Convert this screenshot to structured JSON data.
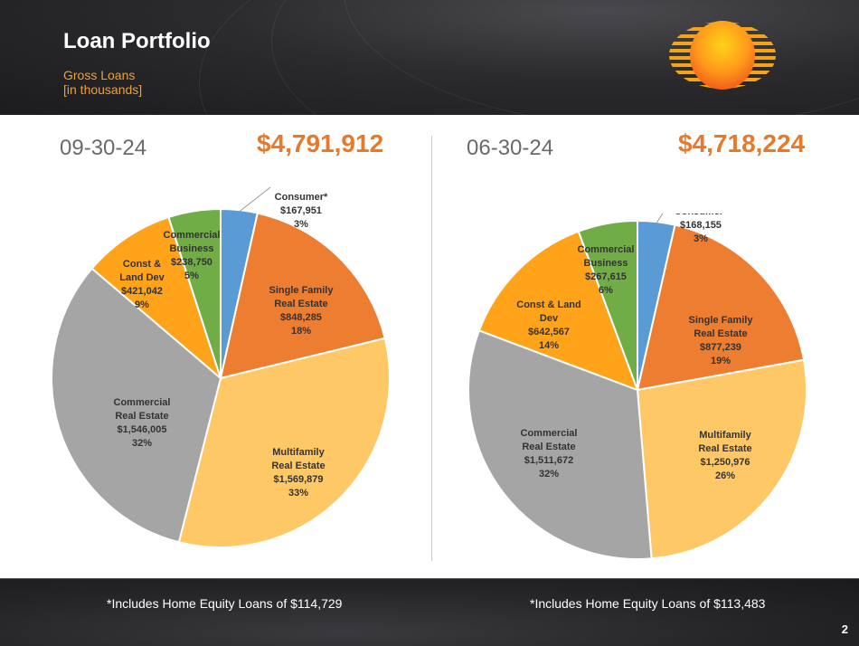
{
  "header": {
    "title": "Loan Portfolio",
    "subtitle_line1": "Gross Loans",
    "subtitle_line2": "[in thousands]"
  },
  "page_number": "2",
  "colors": {
    "accent": "#e8782a",
    "consumer": "#5b9bd5",
    "single_family": "#ed7d31",
    "multifamily": "#ffc866",
    "commercial_real_estate": "#a5a5a5",
    "const_land_dev": "#ffa31a",
    "commercial_business": "#70ad47"
  },
  "chart_data": [
    {
      "type": "pie",
      "date": "09-30-24",
      "total": "$4,791,912",
      "footnote": "*Includes Home Equity Loans of $114,729",
      "slices": [
        {
          "key": "consumer",
          "lines": [
            "Consumer*",
            "$167,951",
            "3%"
          ],
          "value": 167951,
          "color": "#5b9bd5"
        },
        {
          "key": "single_family",
          "lines": [
            "Single Family",
            "Real Estate",
            "$848,285",
            "18%"
          ],
          "value": 848285,
          "color": "#ed7d31"
        },
        {
          "key": "multifamily",
          "lines": [
            "Multifamily",
            "Real Estate",
            "$1,569,879",
            "33%"
          ],
          "value": 1569879,
          "color": "#ffc866"
        },
        {
          "key": "commercial_real_estate",
          "lines": [
            "Commercial",
            "Real Estate",
            "$1,546,005",
            "32%"
          ],
          "value": 1546005,
          "color": "#a5a5a5"
        },
        {
          "key": "const_land_dev",
          "lines": [
            "Const &",
            "Land Dev",
            "$421,042",
            "9%"
          ],
          "value": 421042,
          "color": "#ffa31a"
        },
        {
          "key": "commercial_business",
          "lines": [
            "Commercial",
            "Business",
            "$238,750",
            "5%"
          ],
          "value": 238750,
          "color": "#70ad47"
        }
      ]
    },
    {
      "type": "pie",
      "date": "06-30-24",
      "total": "$4,718,224",
      "footnote": "*Includes Home Equity Loans of $113,483",
      "slices": [
        {
          "key": "consumer",
          "lines": [
            "Consumer*",
            "$168,155",
            "3%"
          ],
          "value": 168155,
          "color": "#5b9bd5"
        },
        {
          "key": "single_family",
          "lines": [
            "Single Family",
            "Real Estate",
            "$877,239",
            "19%"
          ],
          "value": 877239,
          "color": "#ed7d31"
        },
        {
          "key": "multifamily",
          "lines": [
            "Multifamily",
            "Real Estate",
            "$1,250,976",
            "26%"
          ],
          "value": 1250976,
          "color": "#ffc866"
        },
        {
          "key": "commercial_real_estate",
          "lines": [
            "Commercial",
            "Real Estate",
            "$1,511,672",
            "32%"
          ],
          "value": 1511672,
          "color": "#a5a5a5"
        },
        {
          "key": "const_land_dev",
          "lines": [
            "Const & Land",
            "Dev",
            "$642,567",
            "14%"
          ],
          "value": 642567,
          "color": "#ffa31a"
        },
        {
          "key": "commercial_business",
          "lines": [
            "Commercial",
            "Business",
            "$267,615",
            "6%"
          ],
          "value": 267615,
          "color": "#70ad47"
        }
      ]
    }
  ]
}
